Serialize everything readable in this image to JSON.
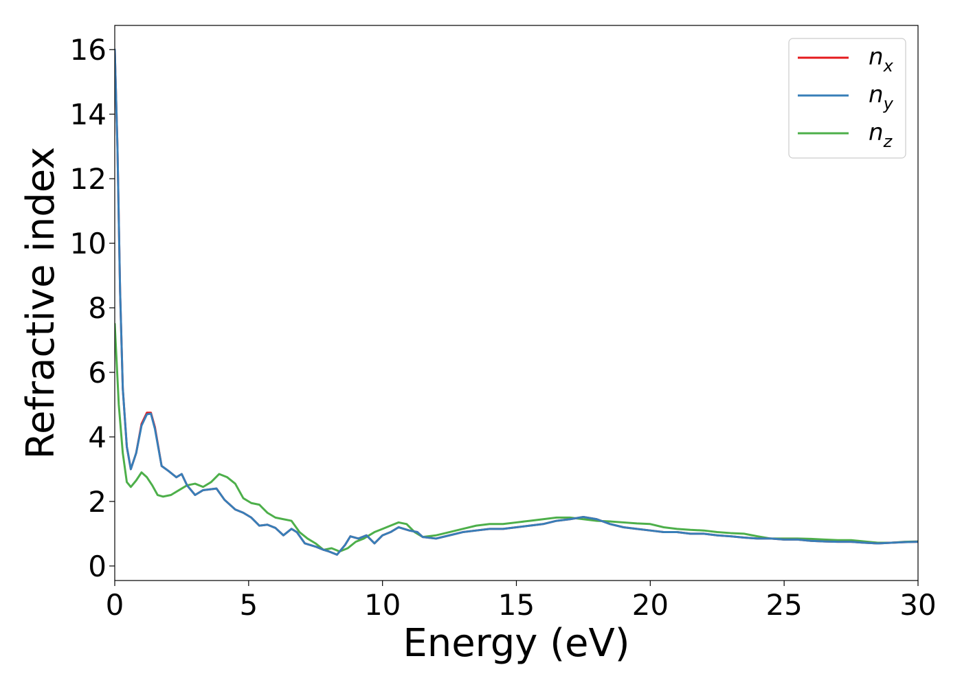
{
  "chart_data": {
    "type": "line",
    "title": "",
    "xlabel": "Energy (eV)",
    "ylabel": "Refractive index",
    "xlim": [
      0,
      30
    ],
    "ylim": [
      -0.45,
      16.75
    ],
    "x_ticks": [
      0,
      5,
      10,
      15,
      20,
      25,
      30
    ],
    "y_ticks": [
      0,
      2,
      4,
      6,
      8,
      10,
      12,
      14,
      16
    ],
    "grid": false,
    "legend": {
      "placement": "top-right"
    },
    "series": [
      {
        "name": "n_x",
        "label_main": "n",
        "label_sub": "x",
        "color": "#e41a1c",
        "x": [
          0,
          0.1,
          0.2,
          0.3,
          0.45,
          0.6,
          0.8,
          1.0,
          1.2,
          1.35,
          1.5,
          1.75,
          2.0,
          2.3,
          2.5,
          2.7,
          3.0,
          3.3,
          3.8,
          4.1,
          4.5,
          4.8,
          5.1,
          5.4,
          5.7,
          6.0,
          6.3,
          6.6,
          6.8,
          7.1,
          7.5,
          7.8,
          8.0,
          8.3,
          8.6,
          8.8,
          9.1,
          9.4,
          9.7,
          10.0,
          10.3,
          10.6,
          11.0,
          11.3,
          11.5,
          12.0,
          12.5,
          13.0,
          13.5,
          14.0,
          14.5,
          15.0,
          15.5,
          16.0,
          16.5,
          17.0,
          17.5,
          18.0,
          18.5,
          19.0,
          19.5,
          20.0,
          20.5,
          21.0,
          21.5,
          22.0,
          22.5,
          23.0,
          23.5,
          24.0,
          24.5,
          25.0,
          25.5,
          26.0,
          26.5,
          27.0,
          27.5,
          28.0,
          28.5,
          29.0,
          29.5,
          30.0
        ],
        "y": [
          16.0,
          13.0,
          8.5,
          5.5,
          3.7,
          3.0,
          3.5,
          4.4,
          4.75,
          4.75,
          4.3,
          3.1,
          2.95,
          2.75,
          2.85,
          2.5,
          2.2,
          2.35,
          2.4,
          2.05,
          1.75,
          1.65,
          1.5,
          1.25,
          1.28,
          1.18,
          0.95,
          1.15,
          1.05,
          0.7,
          0.6,
          0.5,
          0.45,
          0.35,
          0.65,
          0.92,
          0.85,
          0.95,
          0.7,
          0.95,
          1.05,
          1.2,
          1.1,
          1.05,
          0.9,
          0.85,
          0.95,
          1.05,
          1.1,
          1.15,
          1.15,
          1.2,
          1.25,
          1.3,
          1.4,
          1.45,
          1.52,
          1.45,
          1.3,
          1.2,
          1.15,
          1.1,
          1.05,
          1.05,
          1.0,
          1.0,
          0.95,
          0.92,
          0.88,
          0.85,
          0.85,
          0.82,
          0.82,
          0.78,
          0.76,
          0.75,
          0.75,
          0.72,
          0.7,
          0.72,
          0.74,
          0.75
        ]
      },
      {
        "name": "n_y",
        "label_main": "n",
        "label_sub": "y",
        "color": "#377eb8",
        "x": [
          0,
          0.1,
          0.2,
          0.3,
          0.45,
          0.6,
          0.8,
          1.0,
          1.2,
          1.35,
          1.5,
          1.75,
          2.0,
          2.3,
          2.5,
          2.7,
          3.0,
          3.3,
          3.8,
          4.1,
          4.5,
          4.8,
          5.1,
          5.4,
          5.7,
          6.0,
          6.3,
          6.6,
          6.8,
          7.1,
          7.5,
          7.8,
          8.0,
          8.3,
          8.6,
          8.8,
          9.1,
          9.4,
          9.7,
          10.0,
          10.3,
          10.6,
          11.0,
          11.3,
          11.5,
          12.0,
          12.5,
          13.0,
          13.5,
          14.0,
          14.5,
          15.0,
          15.5,
          16.0,
          16.5,
          17.0,
          17.5,
          18.0,
          18.5,
          19.0,
          19.5,
          20.0,
          20.5,
          21.0,
          21.5,
          22.0,
          22.5,
          23.0,
          23.5,
          24.0,
          24.5,
          25.0,
          25.5,
          26.0,
          26.5,
          27.0,
          27.5,
          28.0,
          28.5,
          29.0,
          29.5,
          30.0
        ],
        "y": [
          16.0,
          13.0,
          8.5,
          5.5,
          3.7,
          3.0,
          3.5,
          4.35,
          4.7,
          4.72,
          4.25,
          3.1,
          2.95,
          2.75,
          2.85,
          2.5,
          2.2,
          2.35,
          2.4,
          2.05,
          1.75,
          1.65,
          1.5,
          1.25,
          1.28,
          1.18,
          0.95,
          1.15,
          1.05,
          0.7,
          0.6,
          0.5,
          0.45,
          0.35,
          0.65,
          0.92,
          0.85,
          0.95,
          0.7,
          0.95,
          1.05,
          1.2,
          1.1,
          1.05,
          0.9,
          0.85,
          0.95,
          1.05,
          1.1,
          1.15,
          1.15,
          1.2,
          1.25,
          1.3,
          1.4,
          1.45,
          1.52,
          1.45,
          1.3,
          1.2,
          1.15,
          1.1,
          1.05,
          1.05,
          1.0,
          1.0,
          0.95,
          0.92,
          0.88,
          0.85,
          0.85,
          0.82,
          0.82,
          0.78,
          0.76,
          0.75,
          0.75,
          0.72,
          0.7,
          0.72,
          0.74,
          0.75
        ]
      },
      {
        "name": "n_z",
        "label_main": "n",
        "label_sub": "z",
        "color": "#4daf4a",
        "x": [
          0,
          0.15,
          0.3,
          0.45,
          0.6,
          0.8,
          1.0,
          1.2,
          1.4,
          1.6,
          1.8,
          2.1,
          2.4,
          2.7,
          3.0,
          3.3,
          3.6,
          3.9,
          4.2,
          4.5,
          4.8,
          5.1,
          5.4,
          5.7,
          6.0,
          6.3,
          6.6,
          6.9,
          7.2,
          7.5,
          7.8,
          8.1,
          8.4,
          8.7,
          9.0,
          9.3,
          9.7,
          10.0,
          10.3,
          10.6,
          10.9,
          11.2,
          11.5,
          12.0,
          12.5,
          13.0,
          13.5,
          14.0,
          14.5,
          15.0,
          15.5,
          16.0,
          16.5,
          17.0,
          17.5,
          18.0,
          18.5,
          19.0,
          19.5,
          20.0,
          20.5,
          21.0,
          21.5,
          22.0,
          22.5,
          23.0,
          23.5,
          24.0,
          24.5,
          25.0,
          25.5,
          26.0,
          26.5,
          27.0,
          27.5,
          28.0,
          28.5,
          29.0,
          29.5,
          30.0
        ],
        "y": [
          7.5,
          5.0,
          3.5,
          2.6,
          2.45,
          2.65,
          2.9,
          2.75,
          2.5,
          2.2,
          2.15,
          2.2,
          2.35,
          2.5,
          2.55,
          2.45,
          2.6,
          2.85,
          2.75,
          2.55,
          2.1,
          1.95,
          1.9,
          1.65,
          1.5,
          1.45,
          1.4,
          1.05,
          0.85,
          0.7,
          0.5,
          0.55,
          0.45,
          0.55,
          0.75,
          0.85,
          1.05,
          1.15,
          1.25,
          1.35,
          1.3,
          1.05,
          0.9,
          0.95,
          1.05,
          1.15,
          1.25,
          1.3,
          1.3,
          1.35,
          1.4,
          1.45,
          1.5,
          1.5,
          1.45,
          1.4,
          1.38,
          1.35,
          1.32,
          1.3,
          1.2,
          1.15,
          1.12,
          1.1,
          1.05,
          1.02,
          1.0,
          0.92,
          0.85,
          0.85,
          0.85,
          0.84,
          0.82,
          0.8,
          0.8,
          0.76,
          0.72,
          0.72,
          0.75,
          0.76
        ]
      }
    ]
  }
}
